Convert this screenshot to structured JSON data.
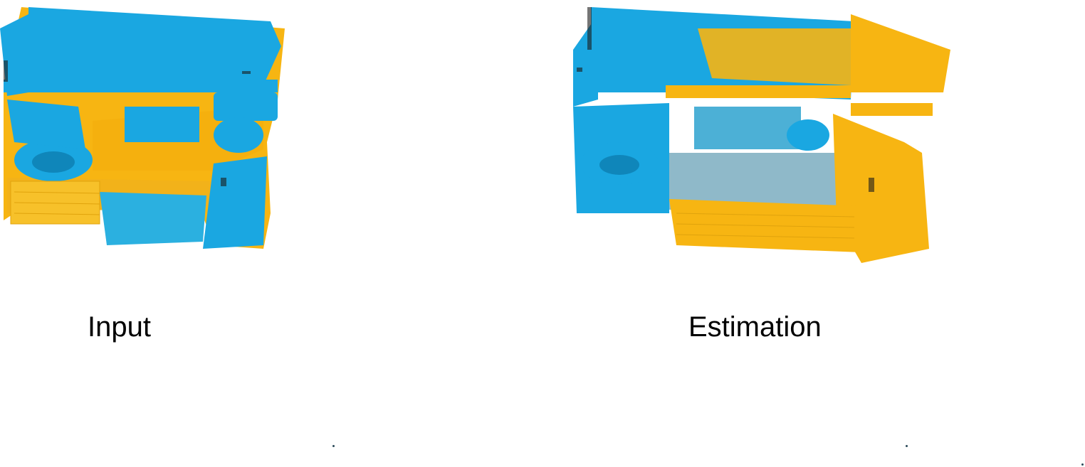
{
  "figure": {
    "colors": {
      "source_cloud": "#1aa7e1",
      "target_cloud": "#f7b512",
      "shadow": "#1a1a1a"
    },
    "panels": [
      {
        "id": "input",
        "caption": "Input",
        "icon": "point-cloud-scene"
      },
      {
        "id": "estimation",
        "caption": "Estimation",
        "icon": "point-cloud-scene"
      }
    ]
  }
}
